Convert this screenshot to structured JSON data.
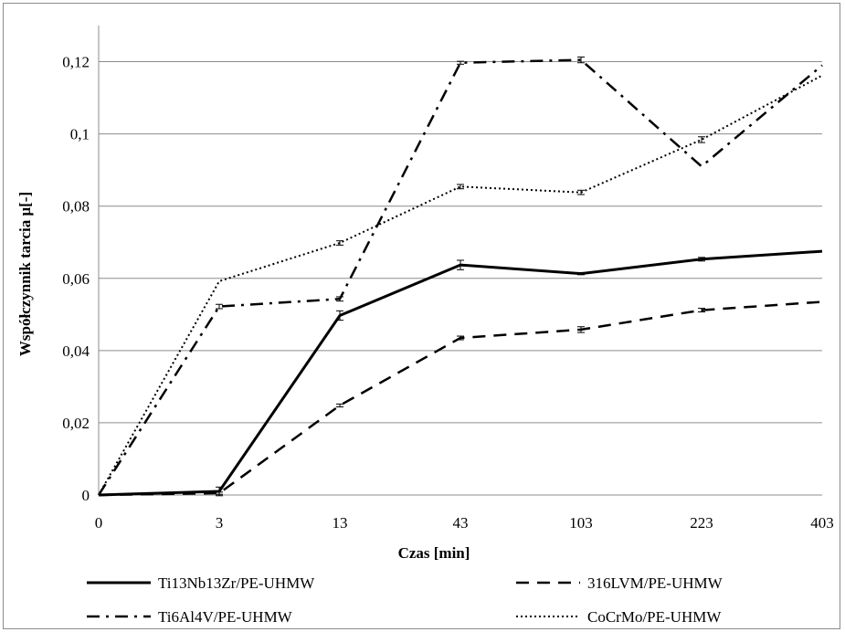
{
  "chart_data": {
    "type": "line",
    "title": "",
    "xlabel": "Czas [min]",
    "ylabel": "Współczynnik tarcia μ[-]",
    "categories": [
      "0",
      "3",
      "13",
      "43",
      "103",
      "223",
      "403"
    ],
    "y_ticks": [
      "0",
      "0,02",
      "0,04",
      "0,06",
      "0,08",
      "0,1",
      "0,12"
    ],
    "ylim": [
      0,
      0.13
    ],
    "grid": "horizontal",
    "legend_position": "bottom",
    "series": [
      {
        "name": "Ti13Nb13Zr/PE-UHMW",
        "style": "solid",
        "color": "#000000",
        "values": [
          0,
          0.001,
          0.0497,
          0.0637,
          0.0613,
          0.0653,
          0.0675
        ],
        "errors": [
          0,
          0.0012,
          0.0013,
          0.0013,
          0.0003,
          0.0005,
          0
        ]
      },
      {
        "name": "316LVM/PE-UHMW",
        "style": "dashed",
        "color": "#000000",
        "values": [
          0,
          0.0005,
          0.0248,
          0.0435,
          0.0458,
          0.0512,
          0.0535
        ],
        "errors": [
          0,
          0.0003,
          0.0004,
          0.0005,
          0.0008,
          0.0005,
          0
        ]
      },
      {
        "name": "Ti6Al4V/PE-UHMW",
        "style": "dashdot",
        "color": "#000000",
        "values": [
          0,
          0.0522,
          0.0543,
          0.1197,
          0.1205,
          0.091,
          0.119
        ],
        "errors": [
          0,
          0.0006,
          0.0006,
          0.0004,
          0.0008,
          0,
          0
        ]
      },
      {
        "name": "CoCrMo/PE-UHMW",
        "style": "dotted",
        "color": "#000000",
        "values": [
          0,
          0.0592,
          0.0698,
          0.0854,
          0.0838,
          0.0984,
          0.1162
        ],
        "errors": [
          0,
          0,
          0.0006,
          0.0006,
          0.0006,
          0.0008,
          0
        ]
      }
    ]
  }
}
